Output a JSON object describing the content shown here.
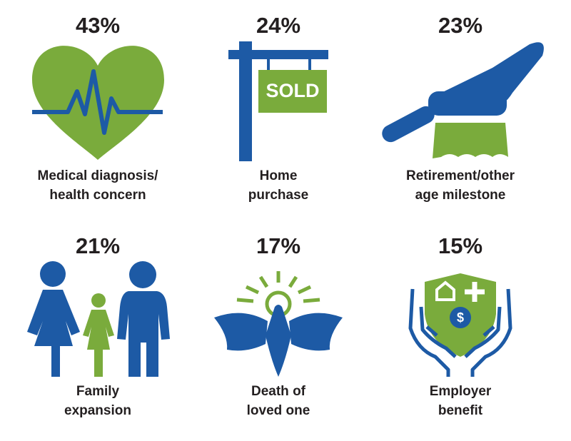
{
  "items": [
    {
      "percent": "43%",
      "label_lines": [
        "Medical diagnosis/",
        "health concern"
      ]
    },
    {
      "percent": "24%",
      "label_lines": [
        "Home",
        "purchase"
      ],
      "sign": "SOLD"
    },
    {
      "percent": "23%",
      "label_lines": [
        "Retirement/other",
        "age milestone"
      ]
    },
    {
      "percent": "21%",
      "label_lines": [
        "Family",
        "expansion"
      ]
    },
    {
      "percent": "17%",
      "label_lines": [
        "Death of",
        "loved one"
      ]
    },
    {
      "percent": "15%",
      "label_lines": [
        "Employer",
        "benefit"
      ]
    }
  ]
}
